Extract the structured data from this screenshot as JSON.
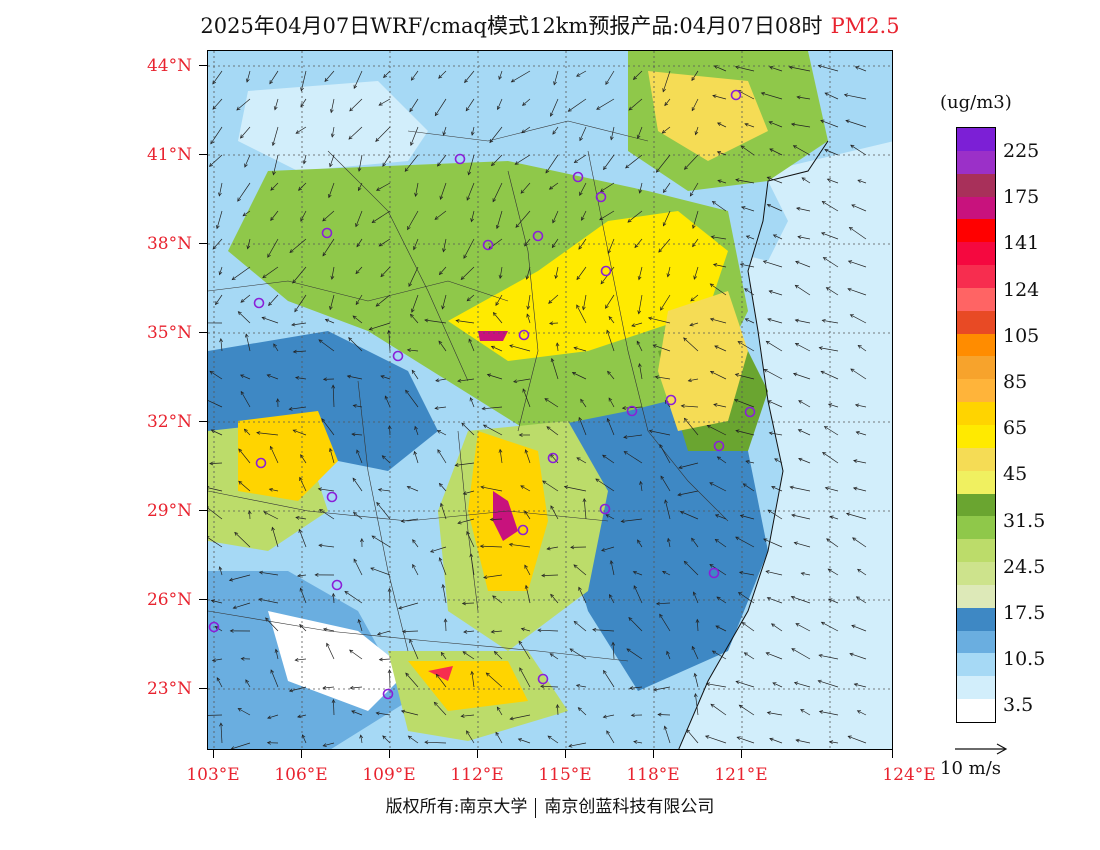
{
  "title": {
    "text": "2025年04月07日WRF/cmaq模式12km预报产品:04月07日08时",
    "variable": "PM2.5"
  },
  "legend": {
    "unit": "(ug/m3)",
    "labels": [
      "225",
      "175",
      "141",
      "124",
      "105",
      "85",
      "65",
      "45",
      "31.5",
      "24.5",
      "17.5",
      "10.5",
      "3.5"
    ],
    "colors": [
      "#7c1fd6",
      "#9b30c8",
      "#a8305a",
      "#c8127d",
      "#ff0000",
      "#f5083f",
      "#f72d4f",
      "#ff6464",
      "#e84a25",
      "#ff8c00",
      "#f7a32c",
      "#ffb43a",
      "#ffd400",
      "#ffea00",
      "#f5dc55",
      "#f0f060",
      "#6aa530",
      "#8fc84a",
      "#bcdc6a",
      "#cde38c",
      "#dde9b8",
      "#3e88c4",
      "#6aaee0",
      "#a6d9f5",
      "#d2eefb",
      "#ffffff"
    ]
  },
  "wind_reference": "10 m/s",
  "map": {
    "lat_labels": [
      "44°N",
      "41°N",
      "38°N",
      "35°N",
      "32°N",
      "29°N",
      "26°N",
      "23°N"
    ],
    "lon_labels": [
      "103°E",
      "106°E",
      "109°E",
      "112°E",
      "115°E",
      "118°E",
      "121°E",
      "124°E"
    ]
  },
  "copyright": {
    "left": "版权所有:南京大学",
    "right": "南京创蓝科技有限公司"
  }
}
